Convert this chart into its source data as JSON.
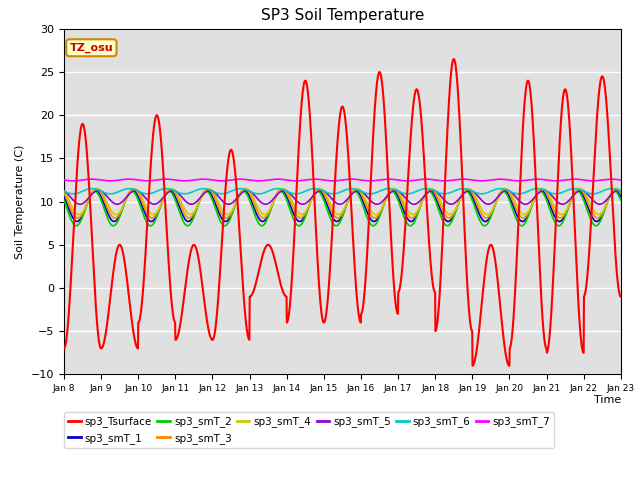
{
  "title": "SP3 Soil Temperature",
  "ylabel": "Soil Temperature (C)",
  "xlabel": "Time",
  "annotation": "TZ_osu",
  "ylim": [
    -10,
    30
  ],
  "background_color": "#e0e0e0",
  "legend_entries": [
    {
      "label": "sp3_Tsurface",
      "color": "#ff0000"
    },
    {
      "label": "sp3_smT_1",
      "color": "#0000cc"
    },
    {
      "label": "sp3_smT_2",
      "color": "#00cc00"
    },
    {
      "label": "sp3_smT_3",
      "color": "#ff8800"
    },
    {
      "label": "sp3_smT_4",
      "color": "#cccc00"
    },
    {
      "label": "sp3_smT_5",
      "color": "#9900cc"
    },
    {
      "label": "sp3_smT_6",
      "color": "#00cccc"
    },
    {
      "label": "sp3_smT_7",
      "color": "#ff00ff"
    }
  ],
  "xtick_labels": [
    "Jan 8",
    "Jan 9",
    "Jan 10",
    "Jan 11",
    "Jan 12",
    "Jan 13",
    "Jan 14",
    "Jan 15",
    "Jan 16",
    "Jan 17",
    "Jan 18",
    "Jan 19",
    "Jan 20",
    "Jan 21",
    "Jan 22",
    "Jan 23"
  ],
  "num_days": 15,
  "day_profiles": [
    {
      "lo": -7,
      "hi": 19,
      "night_lo": -7
    },
    {
      "lo": -7,
      "hi": 5,
      "night_lo": -7
    },
    {
      "lo": -4,
      "hi": 20,
      "night_lo": -4
    },
    {
      "lo": -6,
      "hi": 5,
      "night_lo": -6
    },
    {
      "lo": -6,
      "hi": 16,
      "night_lo": -6
    },
    {
      "lo": -1,
      "hi": 5,
      "night_lo": -1
    },
    {
      "lo": -4,
      "hi": 24,
      "night_lo": -4
    },
    {
      "lo": -4,
      "hi": 21,
      "night_lo": -4
    },
    {
      "lo": -3,
      "hi": 25,
      "night_lo": -3
    },
    {
      "lo": -0.5,
      "hi": 23,
      "night_lo": -0.5
    },
    {
      "lo": -5,
      "hi": 26.5,
      "night_lo": -5
    },
    {
      "lo": -9,
      "hi": 5,
      "night_lo": -9
    },
    {
      "lo": -7,
      "hi": 24,
      "night_lo": -7
    },
    {
      "lo": -7.5,
      "hi": 23,
      "night_lo": -7.5
    },
    {
      "lo": -1,
      "hi": 24.5,
      "night_lo": -1
    }
  ],
  "sub_profiles": [
    {
      "mean": 9.5,
      "amp": 1.8,
      "phase": 0.6,
      "label": "smT_1",
      "color": "#0000cc"
    },
    {
      "mean": 9.2,
      "amp": 2.0,
      "phase": 0.58,
      "label": "smT_2",
      "color": "#00cc00"
    },
    {
      "mean": 9.8,
      "amp": 1.7,
      "phase": 0.62,
      "label": "smT_3",
      "color": "#ff8800"
    },
    {
      "mean": 10.0,
      "amp": 1.5,
      "phase": 0.65,
      "label": "smT_4",
      "color": "#cccc00"
    },
    {
      "mean": 10.5,
      "amp": 0.8,
      "phase": 0.68,
      "label": "smT_5",
      "color": "#9900cc"
    },
    {
      "mean": 11.2,
      "amp": 0.3,
      "phase": 0.5,
      "label": "smT_6",
      "color": "#00cccc"
    },
    {
      "mean": 12.5,
      "amp": 0.1,
      "phase": 0.5,
      "label": "smT_7",
      "color": "#ff00ff"
    }
  ]
}
